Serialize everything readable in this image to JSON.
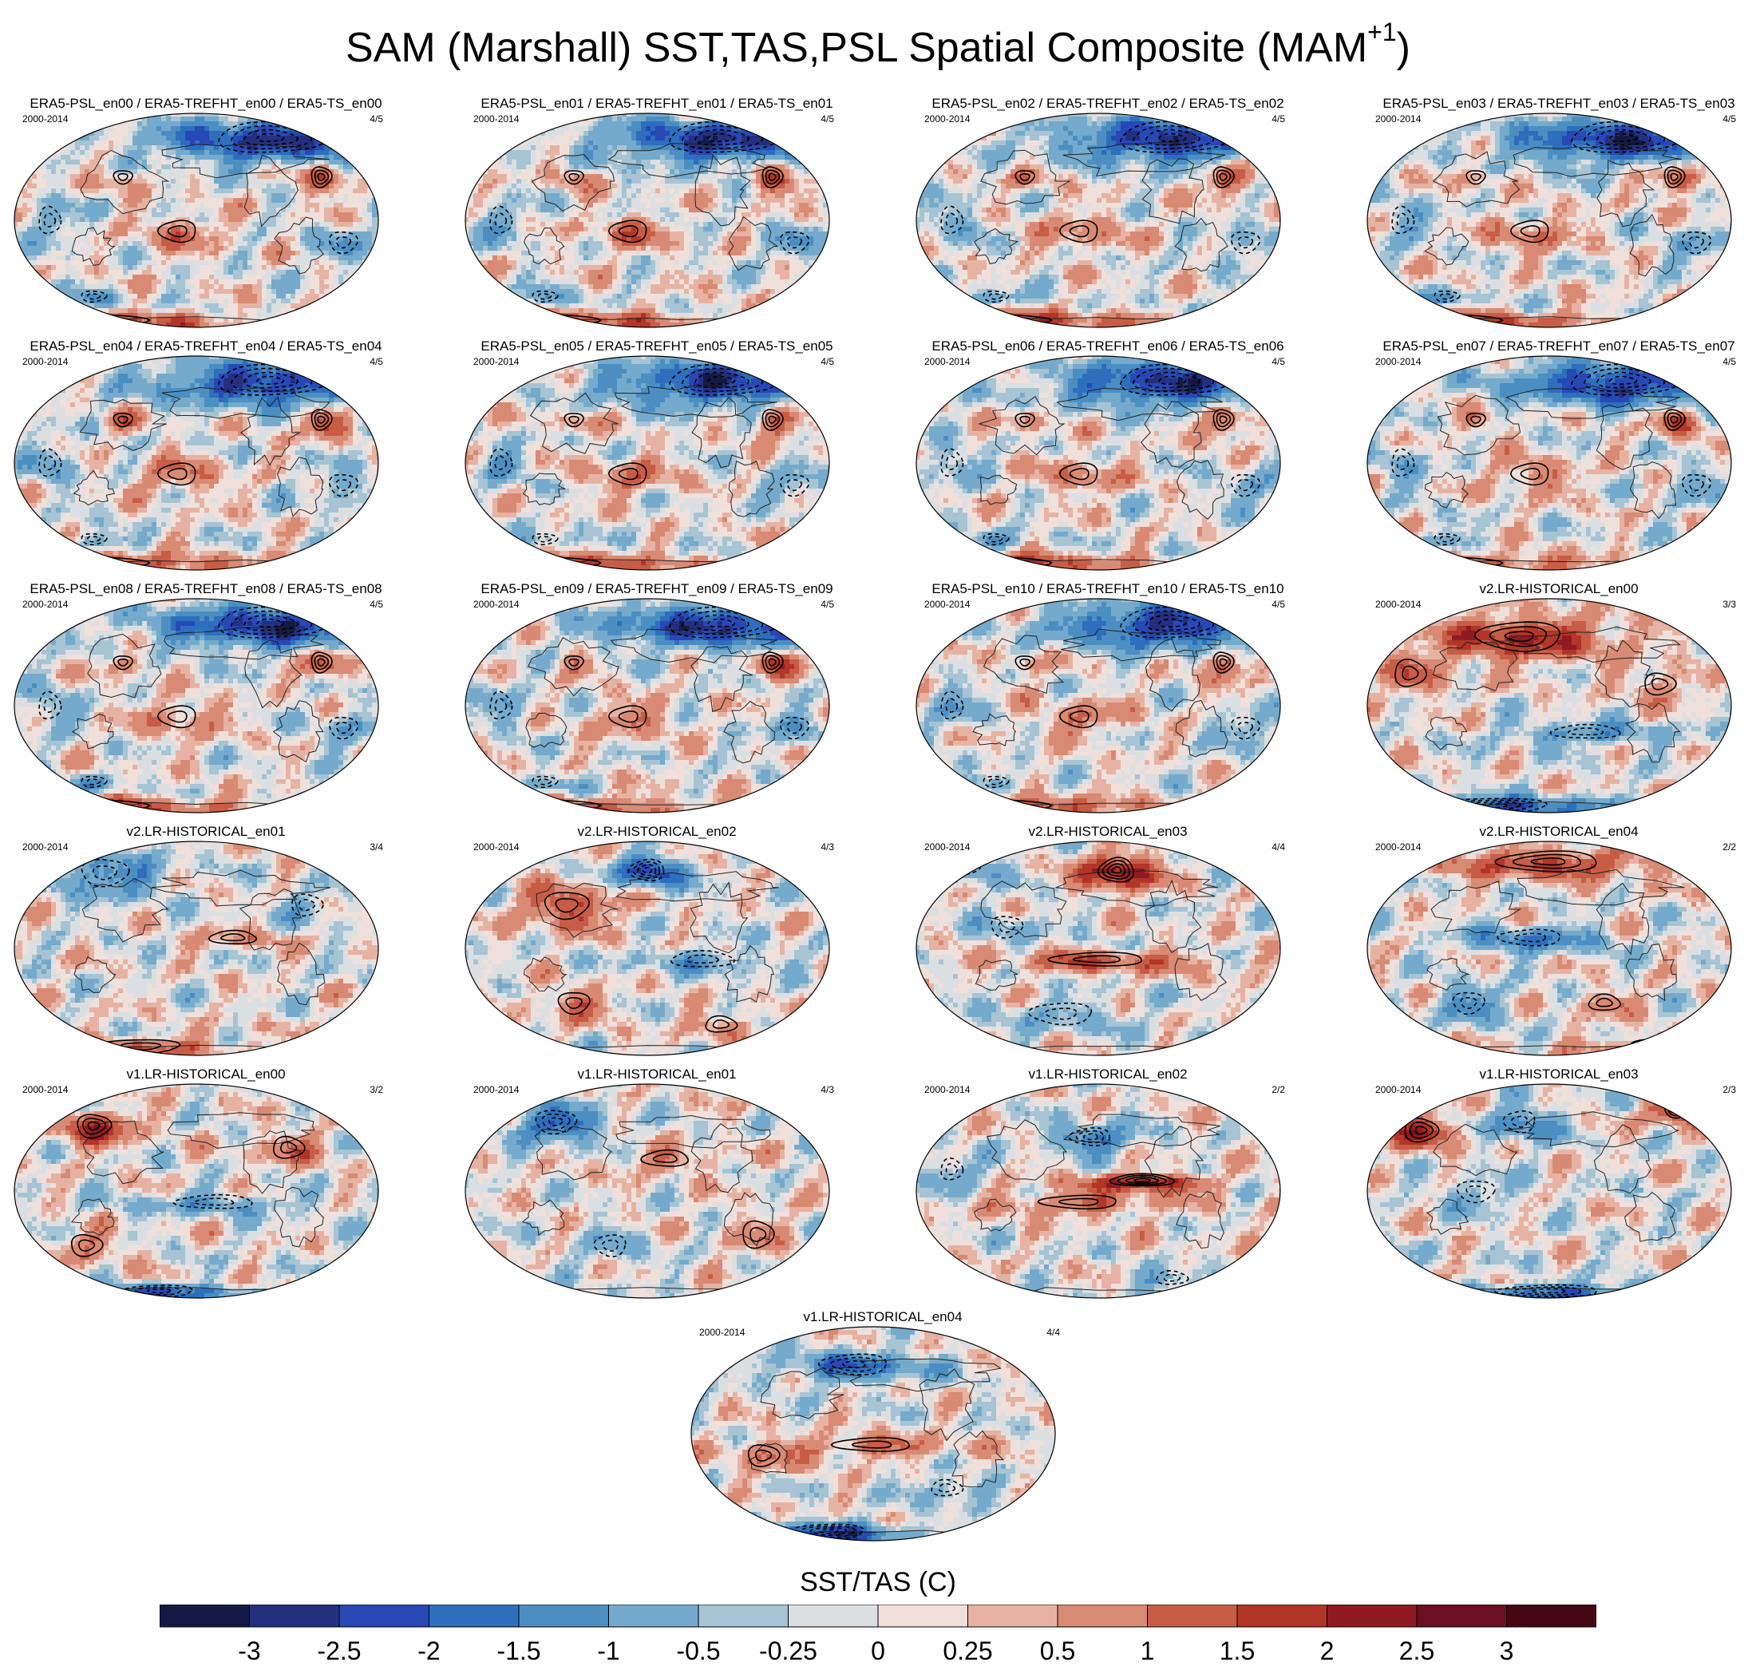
{
  "title": {
    "main": "SAM (Marshall) SST,TAS,PSL Spatial Composite (MAM",
    "superscript": "+1",
    "closing": ")"
  },
  "colorbar": {
    "title": "SST/TAS (C)",
    "tick_labels": [
      "-3",
      "-2.5",
      "-2",
      "-1.5",
      "-1",
      "-0.5",
      "-0.25",
      "0",
      "0.25",
      "0.5",
      "1",
      "1.5",
      "2",
      "2.5",
      "3"
    ],
    "colors": [
      "#141a45",
      "#23307f",
      "#2848b6",
      "#2d6fbd",
      "#4b8fc2",
      "#75aacc",
      "#a6c4d3",
      "#dcdfe2",
      "#f0e0dc",
      "#e6b3a3",
      "#d88a74",
      "#c75d47",
      "#b23528",
      "#911a22",
      "#6b1020",
      "#470816"
    ]
  },
  "chart_data": {
    "type": "heatmap",
    "title": "SAM (Marshall) SST,TAS,PSL Spatial Composite (MAM+1)",
    "colorbar_label": "SST/TAS (C)",
    "levels": [
      -3,
      -2.5,
      -2,
      -1.5,
      -1,
      -0.5,
      -0.25,
      0,
      0.25,
      0.5,
      1,
      1.5,
      2,
      2.5,
      3
    ],
    "projection": "robinson",
    "panels": [
      {
        "title": "ERA5-PSL_en00 / ERA5-TREFHT_en00 / ERA5-TS_en00",
        "period": "2000-2014",
        "ratio": "4/5",
        "pattern": "obs"
      },
      {
        "title": "ERA5-PSL_en01 / ERA5-TREFHT_en01 / ERA5-TS_en01",
        "period": "2000-2014",
        "ratio": "4/5",
        "pattern": "obs"
      },
      {
        "title": "ERA5-PSL_en02 / ERA5-TREFHT_en02 / ERA5-TS_en02",
        "period": "2000-2014",
        "ratio": "4/5",
        "pattern": "obs"
      },
      {
        "title": "ERA5-PSL_en03 / ERA5-TREFHT_en03 / ERA5-TS_en03",
        "period": "2000-2014",
        "ratio": "4/5",
        "pattern": "obs"
      },
      {
        "title": "ERA5-PSL_en04 / ERA5-TREFHT_en04 / ERA5-TS_en04",
        "period": "2000-2014",
        "ratio": "4/5",
        "pattern": "obs"
      },
      {
        "title": "ERA5-PSL_en05 / ERA5-TREFHT_en05 / ERA5-TS_en05",
        "period": "2000-2014",
        "ratio": "4/5",
        "pattern": "obs"
      },
      {
        "title": "ERA5-PSL_en06 / ERA5-TREFHT_en06 / ERA5-TS_en06",
        "period": "2000-2014",
        "ratio": "4/5",
        "pattern": "obs"
      },
      {
        "title": "ERA5-PSL_en07 / ERA5-TREFHT_en07 / ERA5-TS_en07",
        "period": "2000-2014",
        "ratio": "4/5",
        "pattern": "obs"
      },
      {
        "title": "ERA5-PSL_en08 / ERA5-TREFHT_en08 / ERA5-TS_en08",
        "period": "2000-2014",
        "ratio": "4/5",
        "pattern": "obs"
      },
      {
        "title": "ERA5-PSL_en09 / ERA5-TREFHT_en09 / ERA5-TS_en09",
        "period": "2000-2014",
        "ratio": "4/5",
        "pattern": "obs"
      },
      {
        "title": "ERA5-PSL_en10 / ERA5-TREFHT_en10 / ERA5-TS_en10",
        "period": "2000-2014",
        "ratio": "4/5",
        "pattern": "obs"
      },
      {
        "title": "v2.LR-HISTORICAL_en00",
        "period": "2000-2014",
        "ratio": "3/3",
        "pattern": "v2a"
      },
      {
        "title": "v2.LR-HISTORICAL_en01",
        "period": "2000-2014",
        "ratio": "3/4",
        "pattern": "v2b"
      },
      {
        "title": "v2.LR-HISTORICAL_en02",
        "period": "2000-2014",
        "ratio": "4/3",
        "pattern": "v2c"
      },
      {
        "title": "v2.LR-HISTORICAL_en03",
        "period": "2000-2014",
        "ratio": "4/4",
        "pattern": "v2d"
      },
      {
        "title": "v2.LR-HISTORICAL_en04",
        "period": "2000-2014",
        "ratio": "2/2",
        "pattern": "v2e"
      },
      {
        "title": "v1.LR-HISTORICAL_en00",
        "period": "2000-2014",
        "ratio": "3/2",
        "pattern": "v1a"
      },
      {
        "title": "v1.LR-HISTORICAL_en01",
        "period": "2000-2014",
        "ratio": "4/3",
        "pattern": "v1b"
      },
      {
        "title": "v1.LR-HISTORICAL_en02",
        "period": "2000-2014",
        "ratio": "2/2",
        "pattern": "v1c"
      },
      {
        "title": "v1.LR-HISTORICAL_en03",
        "period": "2000-2014",
        "ratio": "2/3",
        "pattern": "v1d"
      },
      {
        "title": "v1.LR-HISTORICAL_en04",
        "period": "2000-2014",
        "ratio": "4/4",
        "pattern": "v1e"
      }
    ]
  }
}
